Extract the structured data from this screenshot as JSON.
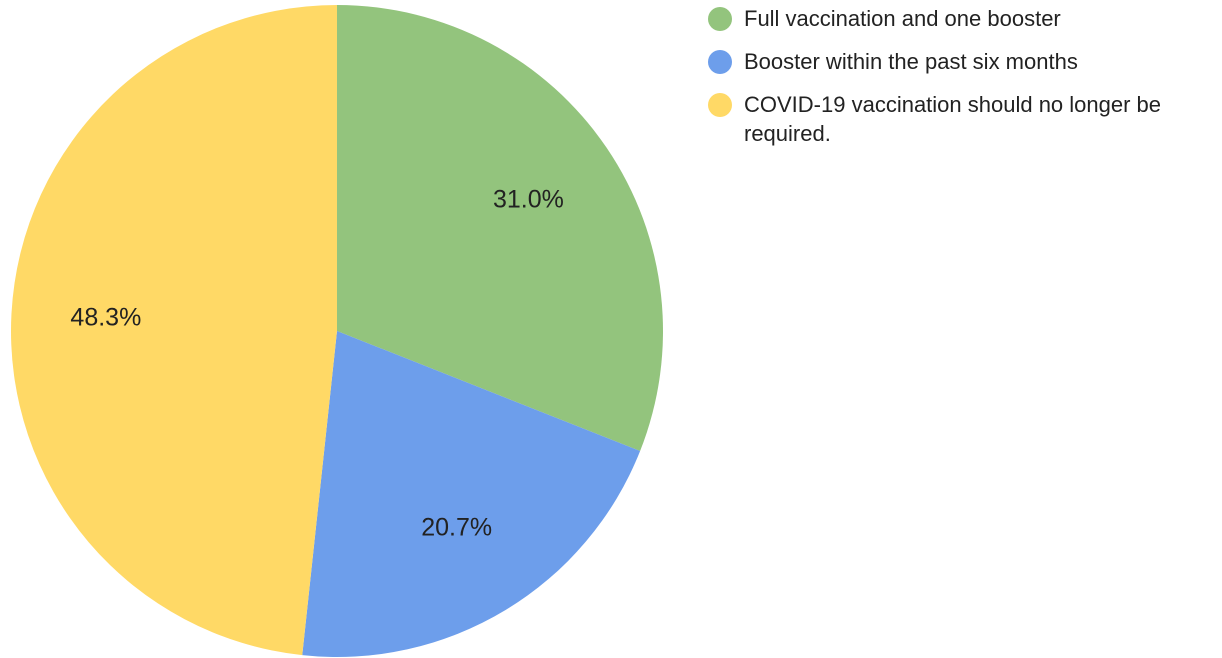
{
  "chart_data": {
    "type": "pie",
    "categories": [
      "Full vaccination and one booster",
      "Booster within the past six months",
      "COVID-19 vaccination should no longer be required."
    ],
    "values": [
      31.0,
      20.7,
      48.3
    ],
    "value_labels": [
      "31.0%",
      "20.7%",
      "48.3%"
    ],
    "colors": [
      "#93c47d",
      "#6d9eeb",
      "#ffd966"
    ],
    "legend": "right"
  }
}
